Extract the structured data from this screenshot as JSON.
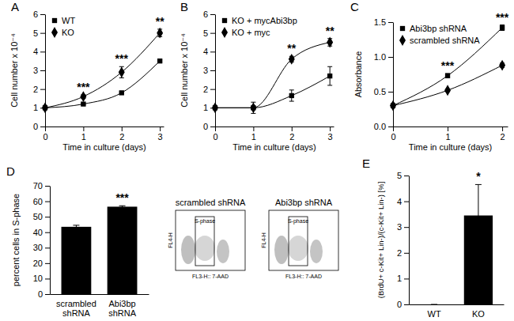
{
  "chart_data": [
    {
      "type": "line",
      "title": "A",
      "x_label": "Time in culture (days)",
      "y_label": "Cell number x 10⁻⁴",
      "x": [
        0,
        1,
        2,
        3
      ],
      "xlim": [
        0,
        3.1
      ],
      "xticks": [
        0,
        1,
        2,
        3
      ],
      "ylim": [
        0,
        6
      ],
      "yticks": [
        0,
        1,
        2,
        3,
        4,
        5,
        6
      ],
      "legend": "upper left",
      "series": [
        {
          "name": "WT",
          "color": "#000000",
          "marker": "square",
          "values": [
            1,
            1.2,
            1.8,
            3.5
          ],
          "errors": [
            0,
            0.05,
            0.05,
            0.05
          ]
        },
        {
          "name": "KO",
          "color": "#000000",
          "marker": "diamond",
          "values": [
            1,
            1.6,
            2.9,
            5.0
          ],
          "errors": [
            0,
            0.1,
            0.3,
            0.2
          ]
        }
      ],
      "annotations": [
        {
          "x": 1,
          "text": "***"
        },
        {
          "x": 2,
          "text": "***"
        },
        {
          "x": 3,
          "text": "**"
        }
      ]
    },
    {
      "type": "line",
      "title": "B",
      "x_label": "Time in culture (days)",
      "y_label": "Cell number x 10⁻⁴",
      "x": [
        0,
        1,
        2,
        3
      ],
      "xlim": [
        0,
        3.1
      ],
      "xticks": [
        0,
        1,
        2,
        3
      ],
      "ylim": [
        0,
        6
      ],
      "yticks": [
        0,
        1,
        2,
        3,
        4,
        5,
        6
      ],
      "legend": "upper left",
      "series": [
        {
          "name": "KO + mycAbi3bp",
          "color": "#000000",
          "marker": "square",
          "values": [
            1,
            1.0,
            1.65,
            2.7
          ],
          "errors": [
            0,
            0.3,
            0.3,
            0.5
          ]
        },
        {
          "name": "KO + myc",
          "color": "#000000",
          "marker": "diamond",
          "values": [
            1,
            1.0,
            3.6,
            4.5
          ],
          "errors": [
            0,
            0.05,
            0.15,
            0.2
          ]
        }
      ],
      "annotations": [
        {
          "x": 2,
          "text": "**"
        },
        {
          "x": 3,
          "text": "**"
        }
      ]
    },
    {
      "type": "line",
      "title": "C",
      "x_label": "Time in culture (days)",
      "y_label": "Absorbance",
      "x": [
        0,
        1,
        2
      ],
      "xlim": [
        0,
        2.1
      ],
      "xticks": [
        0,
        1,
        2
      ],
      "ylim": [
        0,
        1.5
      ],
      "yticks": [
        {
          "value": 0,
          "label": "0.0"
        },
        0.5,
        {
          "value": 1,
          "label": "1.0"
        },
        1.5
      ],
      "legend": "upper left",
      "series": [
        {
          "name": "Abi3bp shRNA",
          "color": "#000000",
          "marker": "square",
          "values": [
            0.3,
            0.73,
            1.42
          ],
          "errors": [
            0,
            0.03,
            0.04
          ]
        },
        {
          "name": "scrambled shRNA",
          "color": "#000000",
          "marker": "diamond",
          "values": [
            0.3,
            0.52,
            0.88
          ],
          "errors": [
            0,
            0.02,
            0.03
          ]
        }
      ],
      "annotations": [
        {
          "x": 1,
          "text": "***"
        },
        {
          "x": 2,
          "text": "***"
        }
      ]
    },
    {
      "type": "bar",
      "title": "D",
      "y_label": "percent cells in S-phase",
      "categories": [
        "scrambled shRNA",
        "Abi3bp shRNA"
      ],
      "values": [
        43.5,
        56.5
      ],
      "errors": [
        1.0,
        0.6
      ],
      "color": "#000000",
      "ylim": [
        0,
        70
      ],
      "yticks": [
        0,
        10,
        20,
        30,
        40,
        50,
        60,
        70
      ],
      "annotations": [
        {
          "x": "Abi3bp shRNA",
          "text": "***"
        }
      ],
      "insets": [
        {
          "title": "scrambled shRNA",
          "gate_label": "S-phase",
          "x_label": "FL3-H:: 7-AAD",
          "y_label": "FL4-H"
        },
        {
          "title": "Abi3bp shRNA",
          "gate_label": "S-phase",
          "x_label": "FL3-H:: 7-AAD",
          "y_label": "FL4-H"
        }
      ]
    },
    {
      "type": "bar",
      "title": "E",
      "y_label": "(BrdU+ c-Kit+ Lin-)/(c-Kit+ Lin-) [%]",
      "categories": [
        "WT",
        "KO"
      ],
      "values": [
        0,
        3.45
      ],
      "errors": [
        0,
        1.2
      ],
      "color": "#000000",
      "ylim": [
        0,
        5
      ],
      "yticks": [
        0,
        1,
        2,
        3,
        4,
        5
      ],
      "annotations": [
        {
          "x": "KO",
          "text": "*"
        }
      ]
    }
  ]
}
